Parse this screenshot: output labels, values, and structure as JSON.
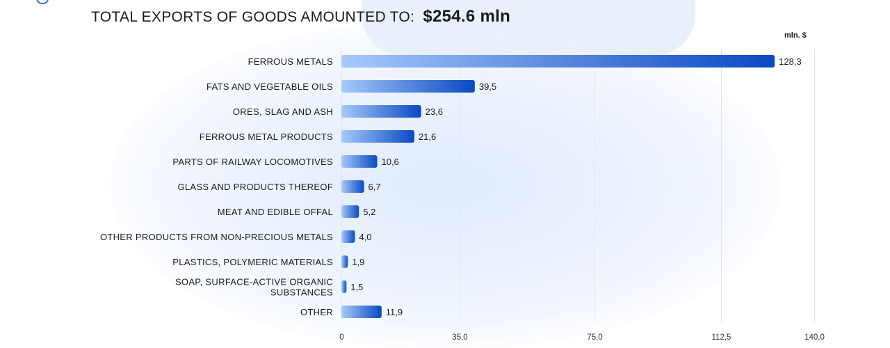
{
  "header": {
    "title": "TOTAL EXPORTS OF GOODS AMOUNTED TO:",
    "amount": "$254.6 mln",
    "unit": "mln. $"
  },
  "colors": {
    "bar_start": "#a6c9fb",
    "bar_end": "#0a49c2",
    "grid": "#e2e6ee",
    "text": "#1a1a1a"
  },
  "chart_data": {
    "type": "bar",
    "orientation": "horizontal",
    "title": "TOTAL EXPORTS OF GOODS AMOUNTED TO: $254.6 mln",
    "xlabel": "mln. $",
    "ylabel": "",
    "categories": [
      [
        "FERROUS METALS"
      ],
      [
        "FATS AND VEGETABLE OILS"
      ],
      [
        "ORES, SLAG AND ASH"
      ],
      [
        "FERROUS METAL PRODUCTS"
      ],
      [
        "PARTS OF RAILWAY LOCOMOTIVES"
      ],
      [
        "GLASS AND PRODUCTS THEREOF"
      ],
      [
        "MEAT AND EDIBLE OFFAL"
      ],
      [
        "OTHER PRODUCTS FROM NON-PRECIOUS METALS"
      ],
      [
        "PLASTICS, POLYMERIC MATERIALS"
      ],
      [
        "SOAP, SURFACE-ACTIVE ORGANIC",
        "SUBSTANCES"
      ],
      [
        "OTHER"
      ]
    ],
    "values": [
      128.3,
      39.5,
      23.6,
      21.6,
      10.6,
      6.7,
      5.2,
      4.0,
      1.9,
      1.5,
      11.9
    ],
    "value_labels": [
      "128,3",
      "39,5",
      "23,6",
      "21,6",
      "10,6",
      "6,7",
      "5,2",
      "4,0",
      "1,9",
      "1,5",
      "11,9"
    ],
    "ticks": [
      0,
      35,
      75,
      112.5,
      140
    ],
    "tick_labels": [
      "0",
      "35,0",
      "75,0",
      "112,5",
      "140,0"
    ],
    "xlim": [
      0,
      140
    ],
    "grid": true,
    "legend": "none"
  }
}
